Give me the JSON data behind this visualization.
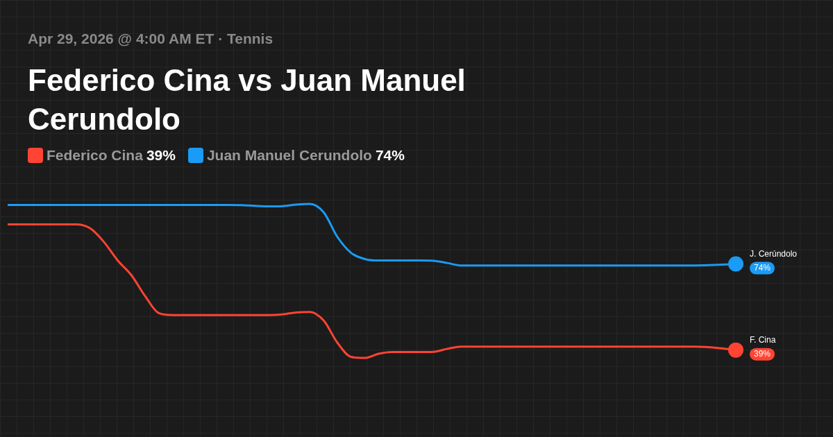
{
  "chart_data": {
    "type": "line",
    "title": "Federico Cina vs Juan Manuel Cerundolo",
    "subtitle": "Apr 29, 2026 @ 4:00 AM ET · Tennis",
    "categories": [
      null,
      null,
      null,
      null,
      null,
      null,
      null,
      null,
      null,
      null,
      null,
      null,
      null,
      null,
      null,
      null,
      null,
      null,
      null,
      null,
      null,
      null,
      null,
      null,
      null,
      null,
      null,
      null,
      null,
      null,
      null,
      null,
      null,
      null,
      null,
      null,
      null,
      null,
      null,
      null,
      null,
      null,
      null,
      null,
      null,
      null,
      null,
      null,
      null,
      null,
      null,
      null,
      null,
      null
    ],
    "legend": "top left",
    "line_style": "solid",
    "series": [
      {
        "name": "Federico Cina",
        "color": "#ff4433",
        "values": [
          90.1,
          90.1,
          90.1,
          90.1,
          90.1,
          90.1,
          88.5,
          83,
          75.5,
          69.5,
          61,
          54,
          53.2,
          53.2,
          53.2,
          53.2,
          53.2,
          53.2,
          53.2,
          53.2,
          53.5,
          54.3,
          54.5,
          51,
          42,
          36.2,
          35.8,
          37.5,
          38.2,
          38.2,
          38.2,
          38.3,
          39.5,
          40.4,
          40.4,
          40.4,
          40.4,
          40.4,
          40.4,
          40.4,
          40.4,
          40.4,
          40.4,
          40.4,
          40.4,
          40.4,
          40.4,
          40.4,
          40.4,
          40.4,
          40.4,
          40.2,
          39.7,
          39
        ],
        "value_labels": [
          null,
          null,
          null,
          null,
          null,
          null,
          null,
          null,
          null,
          null,
          null,
          null,
          null,
          null,
          null,
          null,
          null,
          null,
          null,
          null,
          null,
          null,
          null,
          null,
          null,
          null,
          null,
          null,
          null,
          null,
          null,
          null,
          null,
          null,
          null,
          null,
          null,
          null,
          null,
          null,
          null,
          null,
          null,
          null,
          null,
          null,
          null,
          null,
          null,
          null,
          null,
          null,
          null,
          "39%"
        ]
      },
      {
        "name": "Juan Manuel Cerundolo",
        "color": "#1a9bf5",
        "values": [
          98,
          98,
          98,
          98,
          98,
          98,
          98,
          98,
          98,
          98,
          98,
          98,
          98,
          98,
          98,
          98,
          98,
          97.9,
          97.6,
          97.4,
          97.5,
          98.1,
          98.4,
          95,
          85,
          78.5,
          76,
          75.4,
          75.4,
          75.4,
          75.4,
          75.3,
          74.4,
          73.4,
          73.4,
          73.4,
          73.4,
          73.4,
          73.4,
          73.4,
          73.4,
          73.4,
          73.4,
          73.4,
          73.4,
          73.4,
          73.4,
          73.4,
          73.4,
          73.4,
          73.4,
          73.5,
          73.7,
          74
        ],
        "value_labels": [
          null,
          null,
          null,
          null,
          null,
          null,
          null,
          null,
          null,
          null,
          null,
          null,
          null,
          null,
          null,
          null,
          null,
          null,
          null,
          null,
          null,
          null,
          null,
          null,
          null,
          null,
          null,
          null,
          null,
          null,
          null,
          null,
          null,
          null,
          null,
          null,
          null,
          null,
          null,
          null,
          null,
          null,
          null,
          null,
          null,
          null,
          null,
          null,
          null,
          null,
          null,
          null,
          null,
          "74%"
        ]
      }
    ],
    "annotations": [
      "F. Cina",
      "J. Cerúndolo"
    ]
  }
}
